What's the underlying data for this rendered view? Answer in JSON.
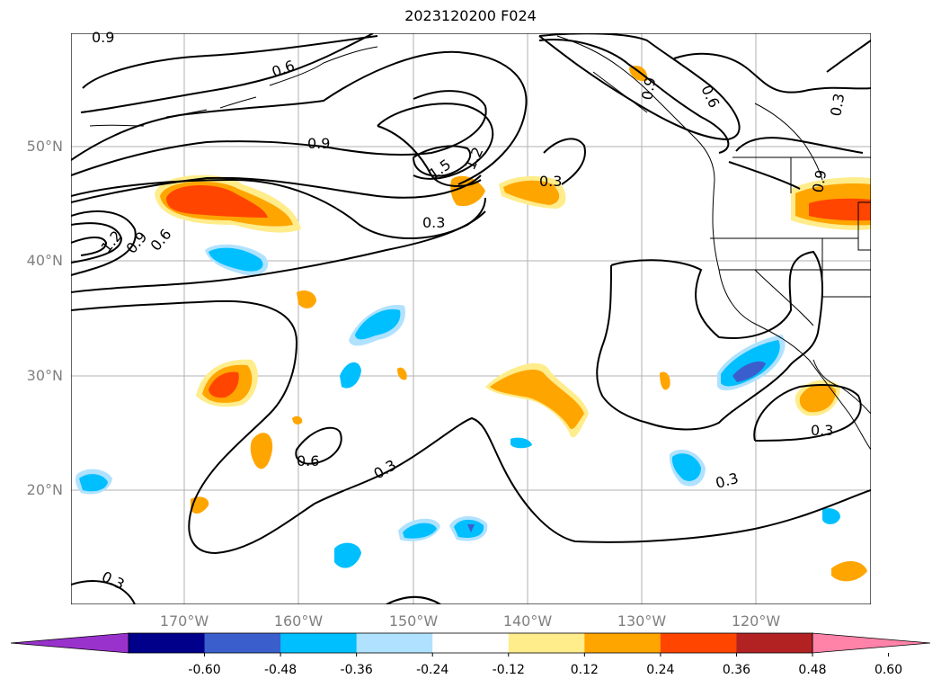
{
  "title": "2023120200 F024",
  "lat_labels": [
    "50°N",
    "40°N",
    "30°N",
    "20°N"
  ],
  "lon_labels": [
    "170°W",
    "160°W",
    "150°W",
    "140°W",
    "130°W",
    "120°W"
  ],
  "contour_labels": [
    "0.9",
    "0.6",
    "0.9",
    "1.5",
    "1.2",
    "0.3",
    "0.3",
    "1.2",
    "0.9",
    "0.6",
    "0.6",
    "0.3",
    "0.3",
    "0.3",
    "0.3",
    "0.9",
    "0.6",
    "0.3",
    "0.9"
  ],
  "colorbar": {
    "ticks": [
      "-0.60",
      "-0.48",
      "-0.36",
      "-0.24",
      "-0.12",
      "0.12",
      "0.24",
      "0.36",
      "0.48",
      "0.60"
    ],
    "colors": [
      "#9932cc",
      "#00008b",
      "#3a5fcd",
      "#00bfff",
      "#b0e2ff",
      "#ffffff",
      "#ffec8b",
      "#ffa500",
      "#ff4500",
      "#b22222",
      "#ff83a8"
    ]
  }
}
